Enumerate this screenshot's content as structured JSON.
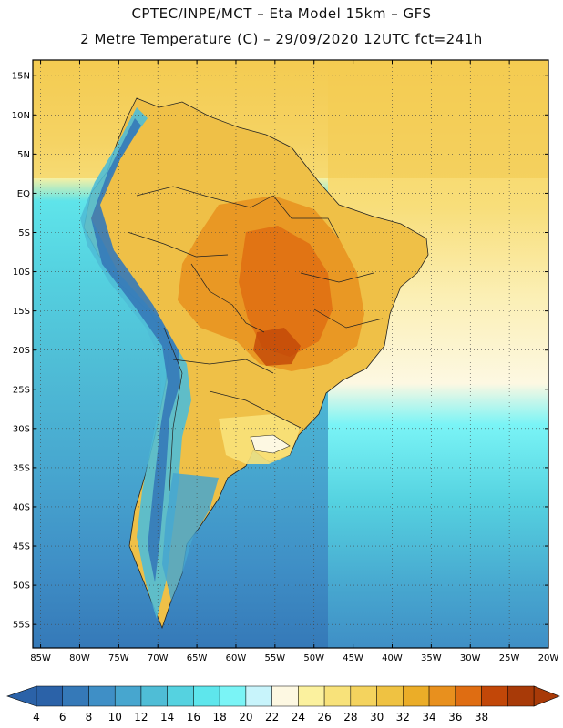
{
  "header": {
    "line1": "CPTEC/INPE/MCT –  Eta Model 15km – GFS",
    "line2": "2 Metre Temperature (C) – 29/09/2020 12UTC fct=241h"
  },
  "map": {
    "region": "South America",
    "lat_labels": [
      "15N",
      "10N",
      "5N",
      "EQ",
      "5S",
      "10S",
      "15S",
      "20S",
      "25S",
      "30S",
      "35S",
      "40S",
      "45S",
      "50S",
      "55S"
    ],
    "lat_values": [
      15,
      10,
      5,
      0,
      -5,
      -10,
      -15,
      -20,
      -25,
      -30,
      -35,
      -40,
      -45,
      -50,
      -55
    ],
    "lon_labels": [
      "85W",
      "80W",
      "75W",
      "70W",
      "65W",
      "60W",
      "55W",
      "50W",
      "45W",
      "40W",
      "35W",
      "30W",
      "25W",
      "20W"
    ],
    "lon_values": [
      -85,
      -80,
      -75,
      -70,
      -65,
      -60,
      -55,
      -50,
      -45,
      -40,
      -35,
      -30,
      -25,
      -20
    ],
    "lat_range": [
      -58,
      17
    ],
    "lon_range": [
      -86,
      -20
    ]
  },
  "colorbar": {
    "unit": "C",
    "labels": [
      "4",
      "6",
      "8",
      "10",
      "12",
      "14",
      "16",
      "18",
      "20",
      "22",
      "24",
      "26",
      "28",
      "30",
      "32",
      "34",
      "36",
      "38"
    ],
    "colors": [
      "#2b62a8",
      "#3579b8",
      "#3f8fc6",
      "#47a6cf",
      "#4fbdd6",
      "#55d2e0",
      "#5ee6ec",
      "#7af4f6",
      "#c8f4fb",
      "#fdf8e2",
      "#fbf19e",
      "#f8e27a",
      "#f4d35e",
      "#efc242",
      "#ebad28",
      "#e8901e",
      "#df6d12",
      "#c24708",
      "#a83a08"
    ]
  }
}
